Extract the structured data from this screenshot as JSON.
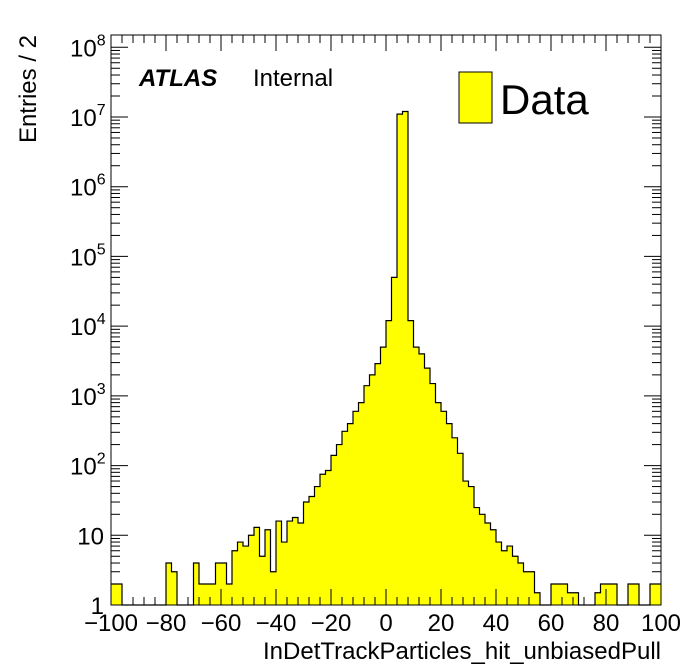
{
  "chart_data": {
    "type": "bar",
    "xlabel": "InDetTrackParticles_hit_unbiasedPull",
    "ylabel": "Entries / 2",
    "label_bold": "ATLAS",
    "label_status": "Internal",
    "legend": [
      {
        "name": "Data",
        "color": "#ffff00"
      }
    ],
    "xlim": [
      -100,
      100
    ],
    "ylim": [
      1,
      150000000
    ],
    "yscale": "log",
    "bin_width": 2,
    "x_ticks": [
      -100,
      -80,
      -60,
      -40,
      -20,
      0,
      20,
      40,
      60,
      80,
      100
    ],
    "x_tick_labels": [
      "−100",
      "−80",
      "−60",
      "−40",
      "−20",
      "0",
      "20",
      "40",
      "60",
      "80",
      "100"
    ],
    "y_ticks": [
      {
        "value": 1,
        "base": "1",
        "exp": ""
      },
      {
        "value": 10,
        "base": "10",
        "exp": ""
      },
      {
        "value": 100,
        "base": "10",
        "exp": "2"
      },
      {
        "value": 1000,
        "base": "10",
        "exp": "3"
      },
      {
        "value": 10000,
        "base": "10",
        "exp": "4"
      },
      {
        "value": 100000,
        "base": "10",
        "exp": "5"
      },
      {
        "value": 1000000,
        "base": "10",
        "exp": "6"
      },
      {
        "value": 10000000,
        "base": "10",
        "exp": "7"
      },
      {
        "value": 100000000,
        "base": "10",
        "exp": "8"
      }
    ],
    "x": [
      -99,
      -97,
      -95,
      -93,
      -91,
      -89,
      -87,
      -85,
      -83,
      -81,
      -79,
      -77,
      -75,
      -73,
      -71,
      -69,
      -67,
      -65,
      -63,
      -61,
      -59,
      -57,
      -55,
      -53,
      -51,
      -49,
      -47,
      -45,
      -43,
      -41,
      -39,
      -37,
      -35,
      -33,
      -31,
      -29,
      -27,
      -25,
      -23,
      -21,
      -19,
      -17,
      -15,
      -13,
      -11,
      -9,
      -7,
      -5,
      -3,
      -1,
      1,
      3,
      5,
      7,
      9,
      11,
      13,
      15,
      17,
      19,
      21,
      23,
      25,
      27,
      29,
      31,
      33,
      35,
      37,
      39,
      41,
      43,
      45,
      47,
      49,
      51,
      53,
      55,
      57,
      59,
      61,
      63,
      65,
      67,
      69,
      71,
      73,
      75,
      77,
      79,
      81,
      83,
      85,
      87,
      89,
      91,
      93,
      95,
      97,
      99
    ],
    "values": [
      2,
      2,
      0,
      0,
      0,
      0,
      0,
      0,
      0,
      0,
      4,
      3,
      0,
      0,
      0,
      4,
      2,
      2,
      2,
      4,
      4,
      2,
      6,
      8,
      7,
      10,
      13,
      5,
      12,
      3,
      16,
      8,
      16,
      18,
      15,
      30,
      36,
      50,
      75,
      85,
      140,
      200,
      310,
      400,
      600,
      800,
      1400,
      2000,
      2900,
      5000,
      12000,
      50000,
      11000000,
      12000000,
      12000,
      5000,
      4000,
      2500,
      1500,
      800,
      600,
      400,
      250,
      150,
      60,
      50,
      25,
      20,
      15,
      12,
      8,
      6,
      7,
      5,
      4,
      3,
      3,
      1.5,
      1,
      1,
      2,
      2,
      2,
      1.5,
      1.5,
      1,
      1,
      1,
      1.5,
      2,
      2,
      2,
      1,
      1,
      2,
      2,
      1,
      1,
      2,
      2
    ]
  }
}
